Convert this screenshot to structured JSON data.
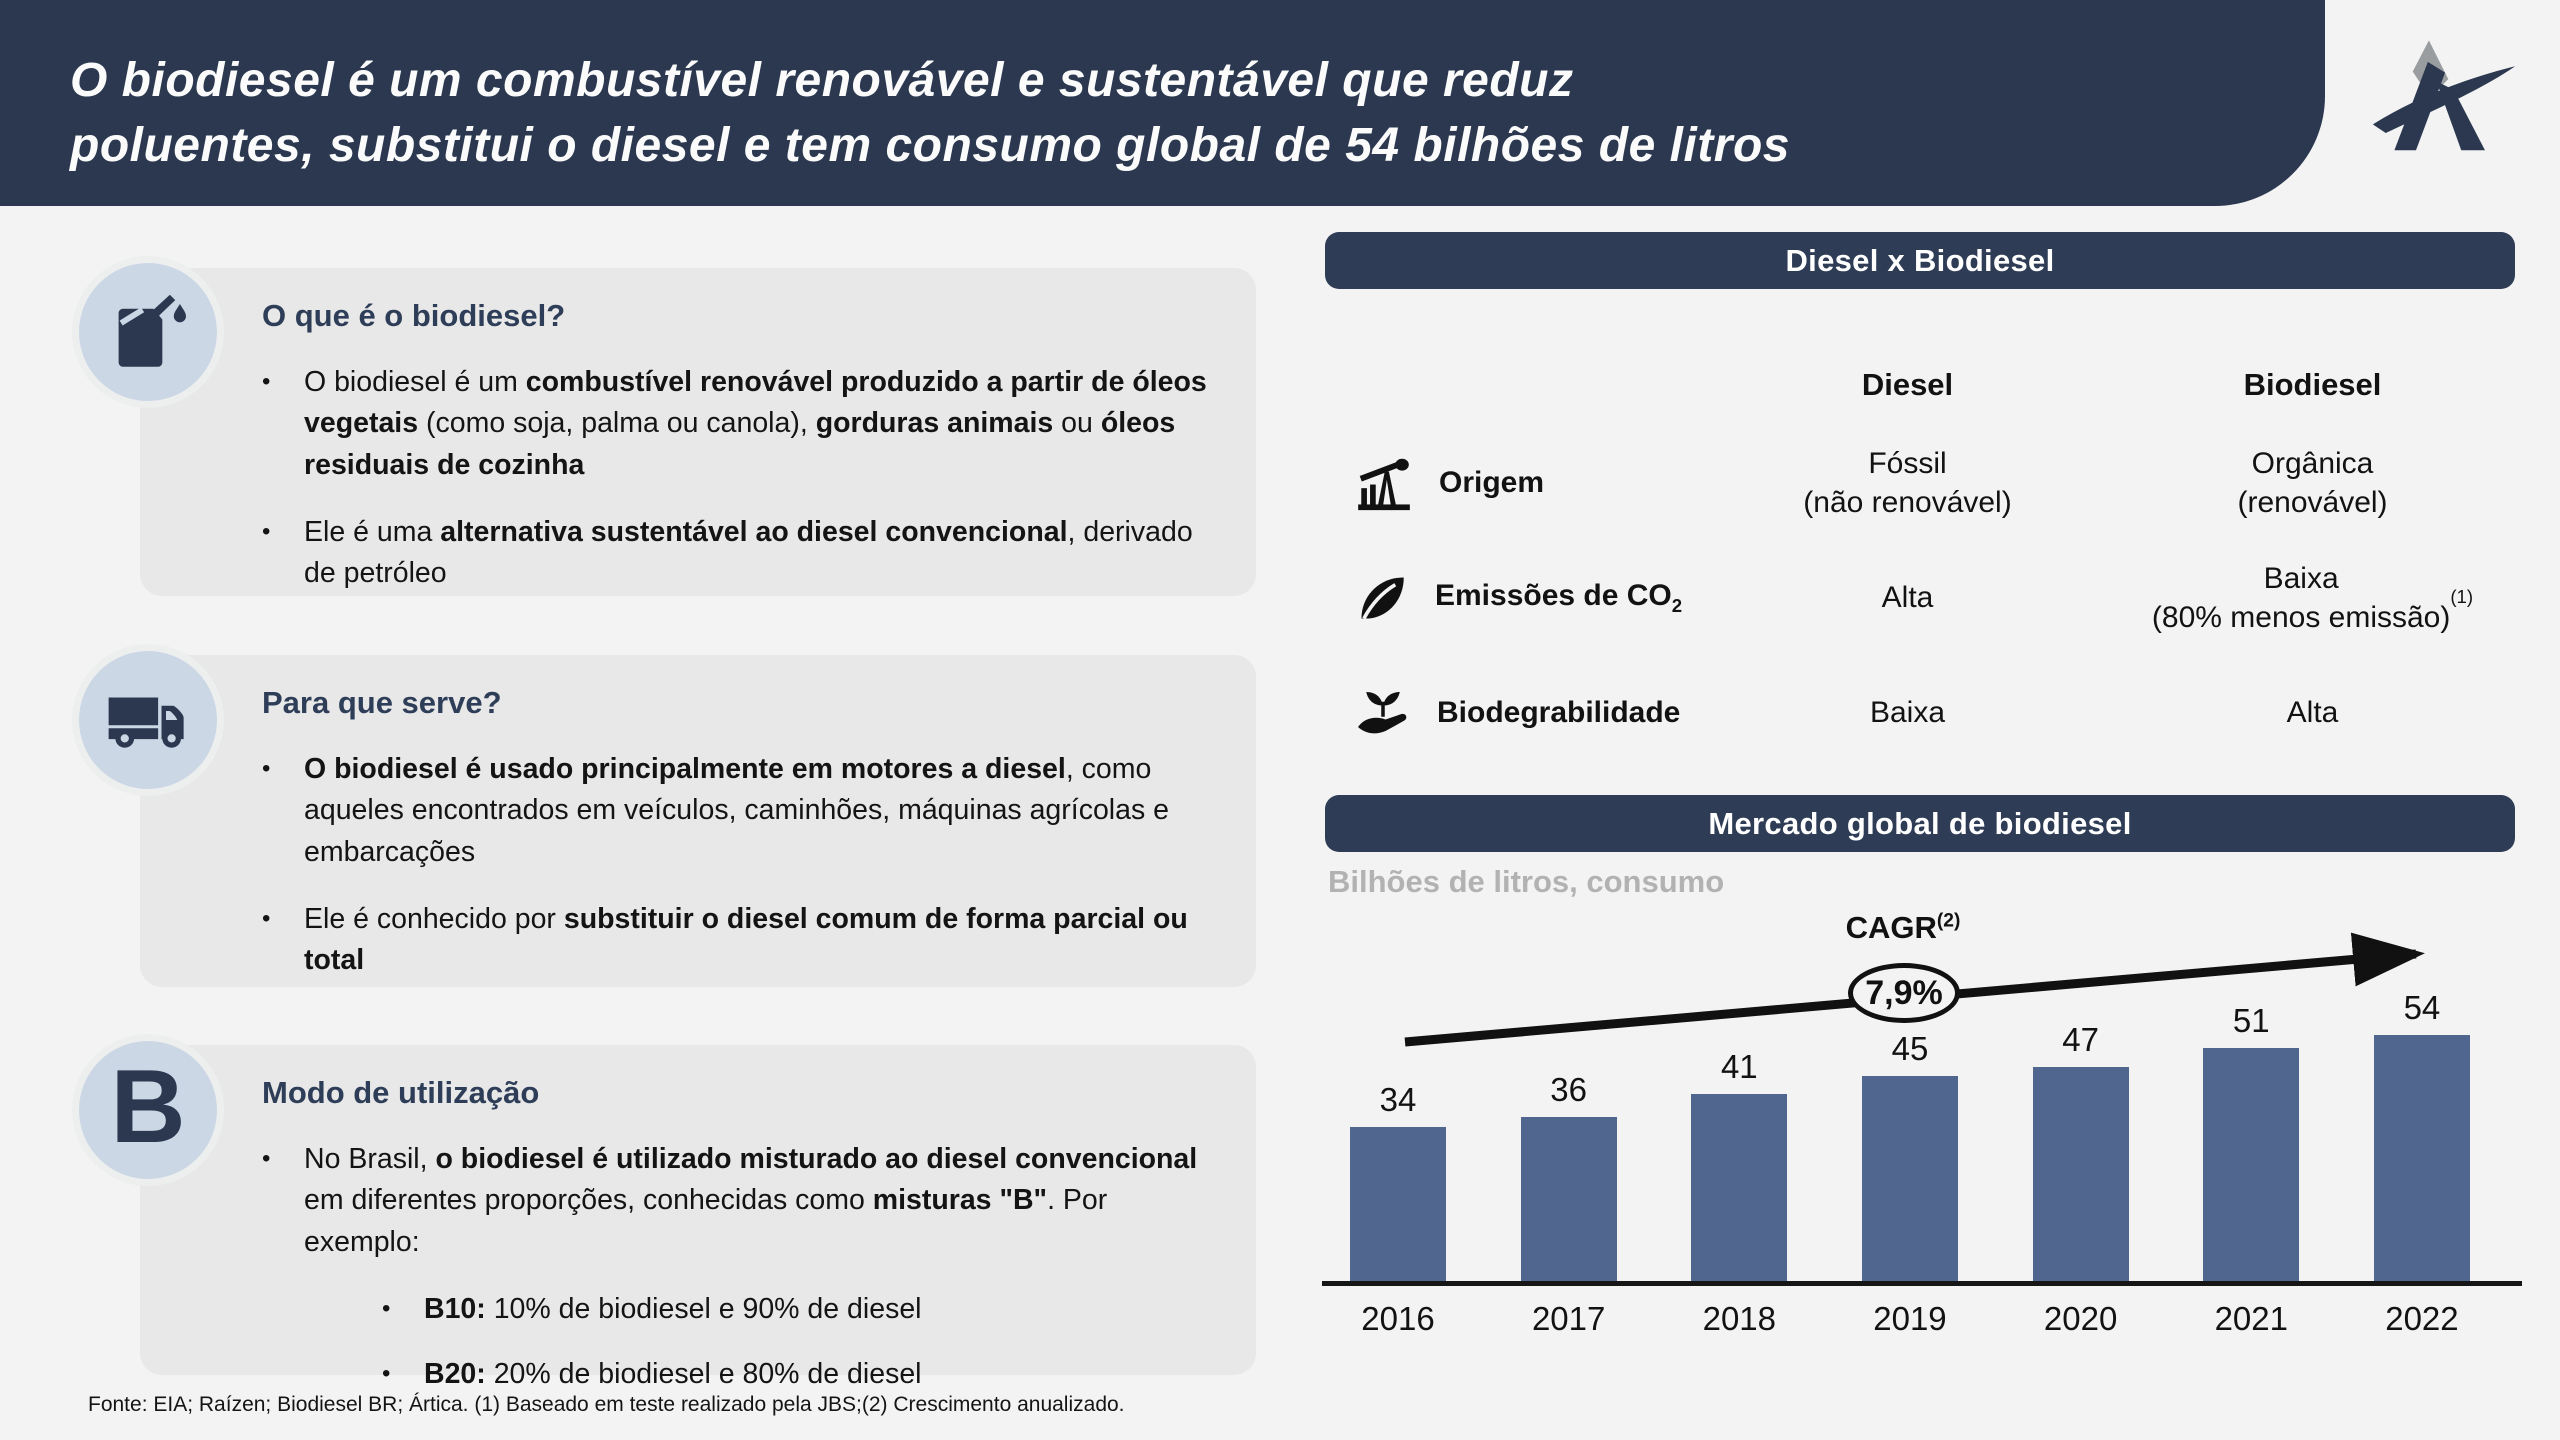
{
  "header": {
    "title_line1": "O biodiesel é um combustível renovável e sustentável que reduz",
    "title_line2": "poluentes, substitui o diesel e tem consumo global de 54 bilhões de litros"
  },
  "boxes": [
    {
      "icon": "fuel-can-icon",
      "title": "O que é o biodiesel?",
      "bullets": [
        [
          {
            "t": "O biodiesel é um "
          },
          {
            "t": "combustível renovável produzido a partir de óleos vegetais",
            "b": true
          },
          {
            "t": " (como soja, palma ou canola), "
          },
          {
            "t": "gorduras animais",
            "b": true
          },
          {
            "t": " ou "
          },
          {
            "t": "óleos residuais de cozinha",
            "b": true
          }
        ],
        [
          {
            "t": "Ele é uma "
          },
          {
            "t": "alternativa sustentável ao diesel convencional",
            "b": true
          },
          {
            "t": ", derivado de petróleo"
          }
        ]
      ]
    },
    {
      "icon": "truck-icon",
      "title": "Para que serve?",
      "bullets": [
        [
          {
            "t": "O biodiesel é usado principalmente em motores a diesel",
            "b": true
          },
          {
            "t": ", como aqueles encontrados em veículos, caminhões, máquinas agrícolas e embarcações"
          }
        ],
        [
          {
            "t": "Ele é conhecido por "
          },
          {
            "t": "substituir o diesel comum de forma parcial ou total",
            "b": true
          }
        ]
      ]
    },
    {
      "icon": "letter-b-icon",
      "letter": "B",
      "title": "Modo de utilização",
      "bullets": [
        [
          {
            "t": "No Brasil, "
          },
          {
            "t": "o biodiesel é utilizado misturado ao diesel convencional",
            "b": true
          },
          {
            "t": " em diferentes proporções, conhecidas como "
          },
          {
            "t": "misturas \"B\"",
            "b": true
          },
          {
            "t": ". Por exemplo:"
          }
        ]
      ],
      "sub_bullets": [
        [
          {
            "t": "B10:",
            "b": true
          },
          {
            "t": " 10% de biodiesel e 90% de diesel"
          }
        ],
        [
          {
            "t": "B20:",
            "b": true
          },
          {
            "t": " 20% de biodiesel e 80% de diesel"
          }
        ]
      ]
    }
  ],
  "comparison": {
    "banner": "Diesel x Biodiesel",
    "columns": [
      "Diesel",
      "Biodiesel"
    ],
    "rows": [
      {
        "icon": "oil-pump-icon",
        "label": [
          {
            "t": "Origem"
          }
        ],
        "diesel": "Fóssil\n(não renovável)",
        "biodiesel": "Orgânica\n(renovável)"
      },
      {
        "icon": "leaf-icon",
        "label": [
          {
            "t": "Emissões de CO"
          },
          {
            "t": "2",
            "sub": true
          }
        ],
        "diesel": "Alta",
        "biodiesel": [
          {
            "t": "Baixa\n(80% menos emissão)"
          },
          {
            "t": "(1)",
            "sup": true
          }
        ]
      },
      {
        "icon": "hand-plant-icon",
        "label": [
          {
            "t": "Biodegrabilidade"
          }
        ],
        "diesel": "Baixa",
        "biodiesel": "Alta"
      }
    ]
  },
  "market": {
    "banner": "Mercado global de biodiesel",
    "subtitle": "Bilhões de litros, consumo",
    "cagr_label": [
      {
        "t": "CAGR"
      },
      {
        "t": "(2)",
        "sup": true
      }
    ],
    "cagr_value": "7,9%"
  },
  "chart_data": {
    "type": "bar",
    "categories": [
      "2016",
      "2017",
      "2018",
      "2019",
      "2020",
      "2021",
      "2022"
    ],
    "values": [
      34,
      36,
      41,
      45,
      47,
      51,
      54
    ],
    "title": "Mercado global de biodiesel",
    "ylabel": "Bilhões de litros, consumo",
    "xlabel": "",
    "ylim": [
      0,
      60
    ],
    "grid": false,
    "legend": "none",
    "bar_color": "#51668E",
    "annotation_cagr": "7,9%"
  },
  "footer": "Fonte: EIA; Raízen; Biodiesel BR; Ártica. (1) Baseado em teste realizado pela JBS;(2) Crescimento anualizado.",
  "colors": {
    "header_navy": "#2b3850",
    "banner_navy": "#2e3c55",
    "bar_blue": "#51668E",
    "box_gray": "#e7e8e7",
    "circle_blue": "#ccd7e6",
    "page_bg": "#f2f3f2",
    "title_navy": "#2f3e58",
    "subtitle_gray": "#b1b2b1"
  }
}
